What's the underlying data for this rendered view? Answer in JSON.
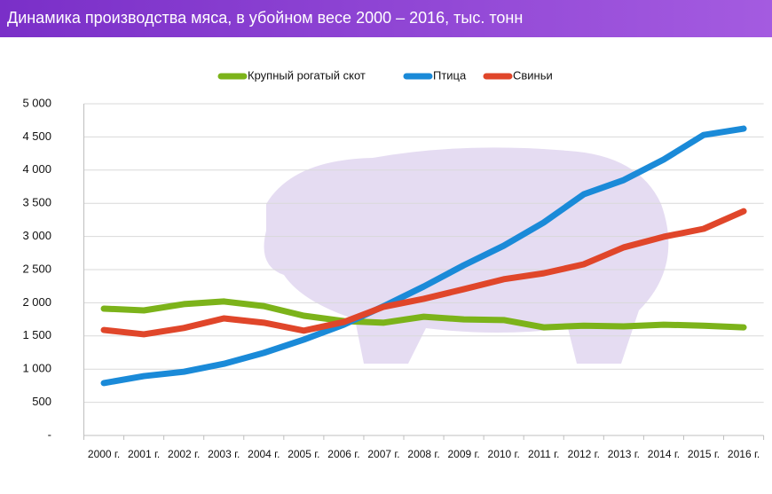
{
  "chart_data": {
    "type": "line",
    "title": "Динамика производства мяса, в убойном весе 2000 – 2016, тыс. тонн",
    "categories": [
      "2000 г.",
      "2001 г.",
      "2002 г.",
      "2003 г.",
      "2004 г.",
      "2005 г.",
      "2006 г.",
      "2007 г.",
      "2008 г.",
      "2009 г.",
      "2010 г.",
      "2011 г.",
      "2012 г.",
      "2013 г.",
      "2014 г.",
      "2015 г.",
      "2016 г."
    ],
    "series": [
      {
        "name": "Крупный рогатый скот",
        "color": "#7cb31a",
        "values": [
          1912,
          1885,
          1980,
          2020,
          1950,
          1805,
          1725,
          1700,
          1790,
          1750,
          1740,
          1630,
          1655,
          1645,
          1670,
          1655,
          1630
        ]
      },
      {
        "name": "Птица",
        "color": "#1a8ad8",
        "values": [
          790,
          895,
          960,
          1080,
          1245,
          1445,
          1670,
          1950,
          2245,
          2565,
          2860,
          3210,
          3635,
          3850,
          4160,
          4530,
          4625
        ]
      },
      {
        "name": "Свиньи",
        "color": "#e0462a",
        "values": [
          1590,
          1525,
          1620,
          1765,
          1700,
          1580,
          1710,
          1940,
          2060,
          2205,
          2355,
          2445,
          2580,
          2835,
          2995,
          3115,
          3380
        ]
      }
    ],
    "ylim": [
      0,
      5000
    ],
    "yticks": [
      {
        "value": 0,
        "label": "-"
      },
      500,
      {
        "value": 1000,
        "label": "1 000"
      },
      {
        "value": 1500,
        "label": "1 500"
      },
      {
        "value": 2000,
        "label": "2 000"
      },
      {
        "value": 2500,
        "label": "2 500"
      },
      {
        "value": 3000,
        "label": "3 000"
      },
      {
        "value": 3500,
        "label": "3 500"
      },
      {
        "value": 4000,
        "label": "4 000"
      },
      {
        "value": 4500,
        "label": "4 500"
      },
      {
        "value": 5000,
        "label": "5 000"
      }
    ],
    "grid": true,
    "legend": "top"
  }
}
